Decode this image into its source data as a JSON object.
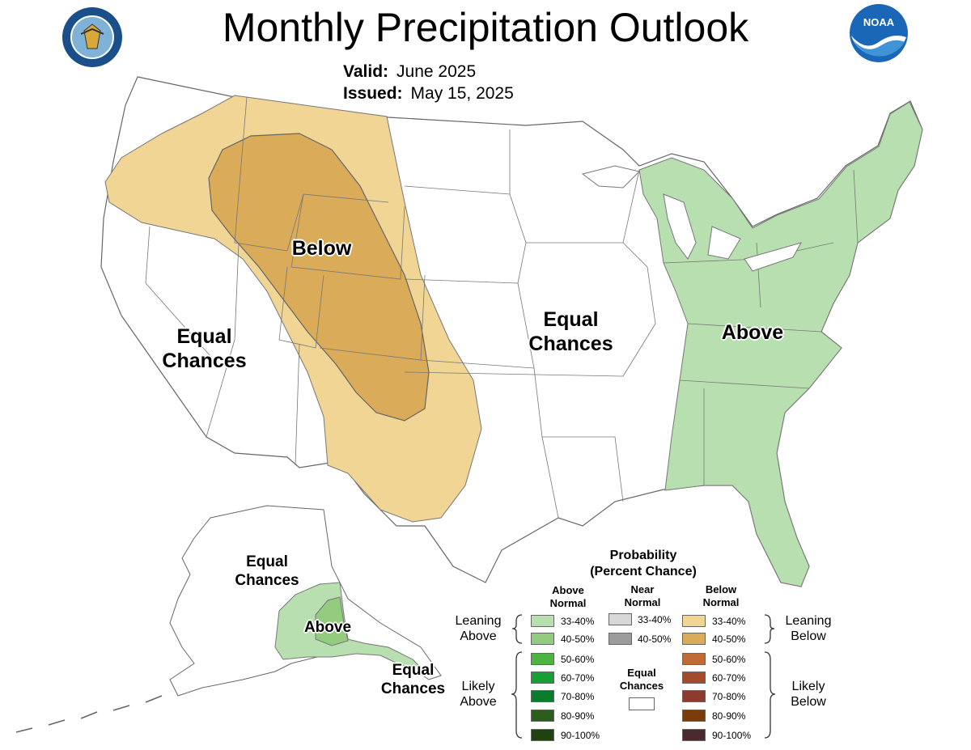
{
  "title": "Monthly Precipitation Outlook",
  "valid": {
    "label": "Valid:",
    "value": "June 2025"
  },
  "issued": {
    "label": "Issued:",
    "value": "May 15, 2025"
  },
  "logos": {
    "left": "department-of-commerce-seal",
    "right": "noaa-logo",
    "noaa_text": "NOAA"
  },
  "map_labels": {
    "conus_below": "Below",
    "conus_equal_west": [
      "Equal",
      "Chances"
    ],
    "conus_equal_central": [
      "Equal",
      "Chances"
    ],
    "conus_above": "Above",
    "alaska_equal_north": [
      "Equal",
      "Chances"
    ],
    "alaska_above": "Above",
    "alaska_equal_south": [
      "Equal",
      "Chances"
    ]
  },
  "legend": {
    "title": [
      "Probability",
      "(Percent Chance)"
    ],
    "col_above": [
      "Above",
      "Normal"
    ],
    "col_near": [
      "Near",
      "Normal"
    ],
    "col_below": [
      "Below",
      "Normal"
    ],
    "leaning_above": [
      "Leaning",
      "Above"
    ],
    "likely_above": [
      "Likely",
      "Above"
    ],
    "leaning_below": [
      "Leaning",
      "Below"
    ],
    "likely_below": [
      "Likely",
      "Below"
    ],
    "equal": [
      "Equal",
      "Chances"
    ],
    "ranges": [
      "33-40%",
      "40-50%",
      "50-60%",
      "60-70%",
      "70-80%",
      "80-90%",
      "90-100%"
    ],
    "near_ranges": [
      "33-40%",
      "40-50%"
    ],
    "above_colors": [
      "#b8dfb0",
      "#93cc7e",
      "#4db53f",
      "#16a034",
      "#0a7d2a",
      "#2b5e1a",
      "#1f4210"
    ],
    "near_colors": [
      "#d8d8d8",
      "#9c9c9c"
    ],
    "below_colors": [
      "#f0d595",
      "#daab58",
      "#c06a35",
      "#a44b2b",
      "#8e3b2f",
      "#7b3c0c",
      "#4a2a2d"
    ]
  }
}
